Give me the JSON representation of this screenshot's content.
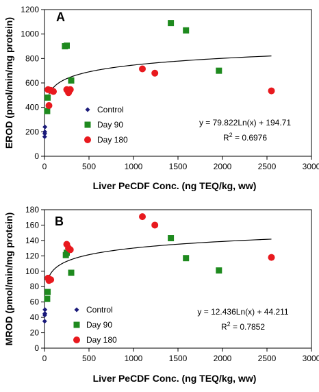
{
  "chart_data": [
    {
      "type": "scatter",
      "panel_label": "A",
      "xlabel": "Liver PeCDF Conc. (ng TEQ/kg, ww)",
      "ylabel": "EROD (pmol/min/mg protein)",
      "xlim": [
        0,
        3000
      ],
      "ylim": [
        0,
        1200
      ],
      "x_ticks": [
        0,
        500,
        1000,
        1500,
        2000,
        2500,
        3000
      ],
      "y_ticks": [
        0,
        200,
        400,
        600,
        800,
        1000,
        1200
      ],
      "grid": false,
      "legend_placement": "center-left",
      "series": [
        {
          "name": "Control",
          "marker": "diamond",
          "color": "#1a1a7a",
          "points": [
            [
              2,
              160
            ],
            [
              3,
              185
            ],
            [
              4,
              200
            ],
            [
              5,
              240
            ]
          ]
        },
        {
          "name": "Day 90",
          "marker": "square",
          "color": "#1e8a1e",
          "points": [
            [
              30,
              370
            ],
            [
              35,
              480
            ],
            [
              230,
              900
            ],
            [
              250,
              905
            ],
            [
              300,
              620
            ],
            [
              1420,
              1090
            ],
            [
              1590,
              1030
            ],
            [
              1960,
              700
            ]
          ]
        },
        {
          "name": "Day 180",
          "marker": "circle",
          "color": "#e8191e",
          "points": [
            [
              40,
              545
            ],
            [
              50,
              415
            ],
            [
              70,
              540
            ],
            [
              100,
              530
            ],
            [
              250,
              545
            ],
            [
              270,
              520
            ],
            [
              290,
              545
            ],
            [
              1100,
              715
            ],
            [
              1240,
              680
            ],
            [
              2550,
              535
            ]
          ]
        }
      ],
      "trendline": {
        "a": 79.822,
        "b": 194.71,
        "x_start": 50,
        "x_end": 2550
      },
      "equation_text": "y = 79.822Ln(x) + 194.71",
      "r2_label": "R",
      "r2_value_text": " = 0.6976"
    },
    {
      "type": "scatter",
      "panel_label": "B",
      "xlabel": "Liver PeCDF Conc. (ng TEQ/kg, ww)",
      "ylabel": "MROD (pmol/min/mg protein)",
      "xlim": [
        0,
        3000
      ],
      "ylim": [
        0,
        180
      ],
      "x_ticks": [
        0,
        500,
        1000,
        1500,
        2000,
        2500,
        3000
      ],
      "y_ticks": [
        0,
        20,
        40,
        60,
        80,
        100,
        120,
        140,
        160,
        180
      ],
      "grid": false,
      "legend_placement": "lower-left",
      "series": [
        {
          "name": "Control",
          "marker": "diamond",
          "color": "#1a1a7a",
          "points": [
            [
              2,
              35
            ],
            [
              3,
              43
            ],
            [
              4,
              45
            ],
            [
              5,
              50
            ]
          ]
        },
        {
          "name": "Day 90",
          "marker": "square",
          "color": "#1e8a1e",
          "points": [
            [
              30,
              64
            ],
            [
              35,
              73
            ],
            [
              240,
              121
            ],
            [
              250,
              124
            ],
            [
              300,
              98
            ],
            [
              1420,
              143
            ],
            [
              1590,
              117
            ],
            [
              1960,
              101
            ]
          ]
        },
        {
          "name": "Day 180",
          "marker": "circle",
          "color": "#e8191e",
          "points": [
            [
              40,
              91
            ],
            [
              50,
              88
            ],
            [
              70,
              89
            ],
            [
              250,
              135
            ],
            [
              270,
              130
            ],
            [
              290,
              128
            ],
            [
              1100,
              171
            ],
            [
              1240,
              160
            ],
            [
              2550,
              118
            ]
          ]
        }
      ],
      "trendline": {
        "a": 12.436,
        "b": 44.211,
        "x_start": 50,
        "x_end": 2550
      },
      "equation_text": "y = 12.436Ln(x) + 44.211",
      "r2_label": "R",
      "r2_value_text": " = 0.7852"
    }
  ]
}
